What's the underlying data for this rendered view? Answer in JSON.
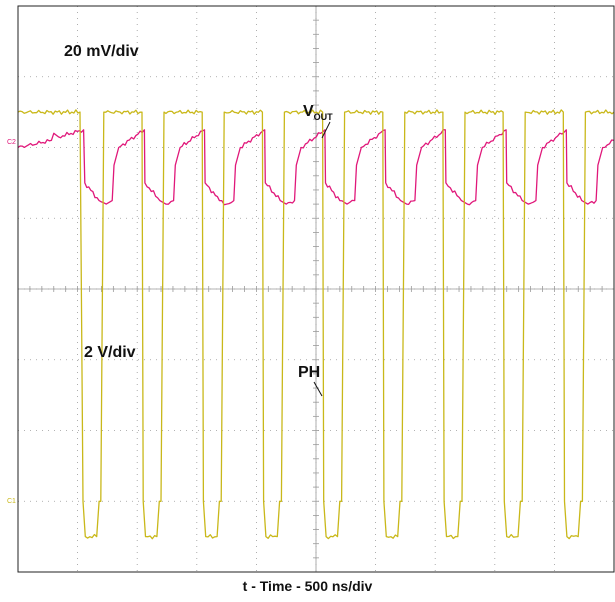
{
  "chart_data": {
    "type": "line",
    "xlabel": "t - Time - 500 ns/div",
    "annotations": {
      "ch2_scale": "20 mV/div",
      "ch1_scale": "2 V/div",
      "vout_main": "V",
      "vout_sub": "OUT",
      "ph": "PH",
      "ch2_marker": "C2",
      "ch1_marker": "C1"
    },
    "grid": true,
    "divisions": {
      "x": 10,
      "y": 8
    },
    "time_per_div_ns": 500,
    "x_unit": "ns",
    "x_range": [
      0,
      5000
    ],
    "switching_period_ns": 505,
    "series": [
      {
        "name": "VOUT",
        "channel": "C2",
        "color": "#e0187a",
        "scale": "20 mV/div",
        "unit": "mV",
        "y_range": [
          -50,
          110
        ],
        "x": [
          0,
          280,
          300,
          340,
          550,
          560,
          680,
          740,
          790,
          805,
          845,
          1060,
          1065,
          1190,
          1240,
          1305,
          1320,
          1360,
          1565,
          1570,
          1690,
          1750,
          1810,
          1825,
          1865,
          2070,
          2075,
          2200,
          2250,
          2320,
          2335,
          2375,
          2575,
          2580,
          2700,
          2760,
          2825,
          2840,
          2880,
          3080,
          3085,
          3210,
          3260,
          3330,
          3345,
          3385,
          3585,
          3590,
          3720,
          3770,
          3840,
          3855,
          3895,
          4095,
          4100,
          4230,
          4280,
          4345,
          4360,
          4400,
          4600,
          4605,
          4730,
          4780,
          4850,
          4865,
          4905,
          5000
        ],
        "values": [
          70,
          72,
          74,
          73,
          75,
          60,
          55,
          54,
          55,
          65,
          70,
          75,
          60,
          55,
          54,
          55,
          65,
          70,
          75,
          60,
          55,
          54,
          55,
          65,
          70,
          75,
          60,
          55,
          54,
          55,
          65,
          70,
          75,
          60,
          55,
          54,
          55,
          65,
          70,
          75,
          60,
          55,
          54,
          55,
          65,
          70,
          75,
          60,
          55,
          54,
          55,
          65,
          70,
          75,
          60,
          55,
          54,
          55,
          65,
          70,
          75,
          60,
          55,
          54,
          55,
          65,
          70,
          72
        ]
      },
      {
        "name": "PH",
        "channel": "C1",
        "color": "#c9b81a",
        "scale": "2 V/div",
        "unit": "V",
        "y_range": [
          -2,
          14
        ],
        "x": [
          0,
          520,
          545,
          565,
          660,
          680,
          695,
          720,
          1040,
          1050,
          1070,
          1165,
          1185,
          1200,
          1225,
          1545,
          1555,
          1575,
          1670,
          1690,
          1705,
          1730,
          2050,
          2060,
          2080,
          2175,
          2195,
          2210,
          2235,
          2555,
          2565,
          2585,
          2680,
          2700,
          2715,
          2740,
          3060,
          3070,
          3090,
          3185,
          3205,
          3220,
          3245,
          3565,
          3575,
          3595,
          3690,
          3710,
          3725,
          3750,
          4070,
          4080,
          4100,
          4195,
          4215,
          4230,
          4255,
          4575,
          4585,
          4605,
          4700,
          4720,
          4735,
          4760,
          5000
        ],
        "values": [
          11.0,
          11.0,
          0,
          -1.0,
          -1.0,
          0,
          0,
          11.0,
          11.0,
          0,
          -1.0,
          -1.0,
          0,
          0,
          11.0,
          11.0,
          0,
          -1.0,
          -1.0,
          0,
          0,
          11.0,
          11.0,
          0,
          -1.0,
          -1.0,
          0,
          0,
          11.0,
          11.0,
          0,
          -1.0,
          -1.0,
          0,
          0,
          11.0,
          11.0,
          0,
          -1.0,
          -1.0,
          0,
          0,
          11.0,
          11.0,
          0,
          -1.0,
          -1.0,
          0,
          0,
          11.0,
          11.0,
          0,
          -1.0,
          -1.0,
          0,
          0,
          11.0,
          11.0,
          0,
          -1.0,
          -1.0,
          0,
          0,
          11.0,
          11.0
        ]
      }
    ],
    "colors": {
      "grid": "#9a9a9a",
      "frame": "#222222",
      "background": "#ffffff"
    }
  }
}
